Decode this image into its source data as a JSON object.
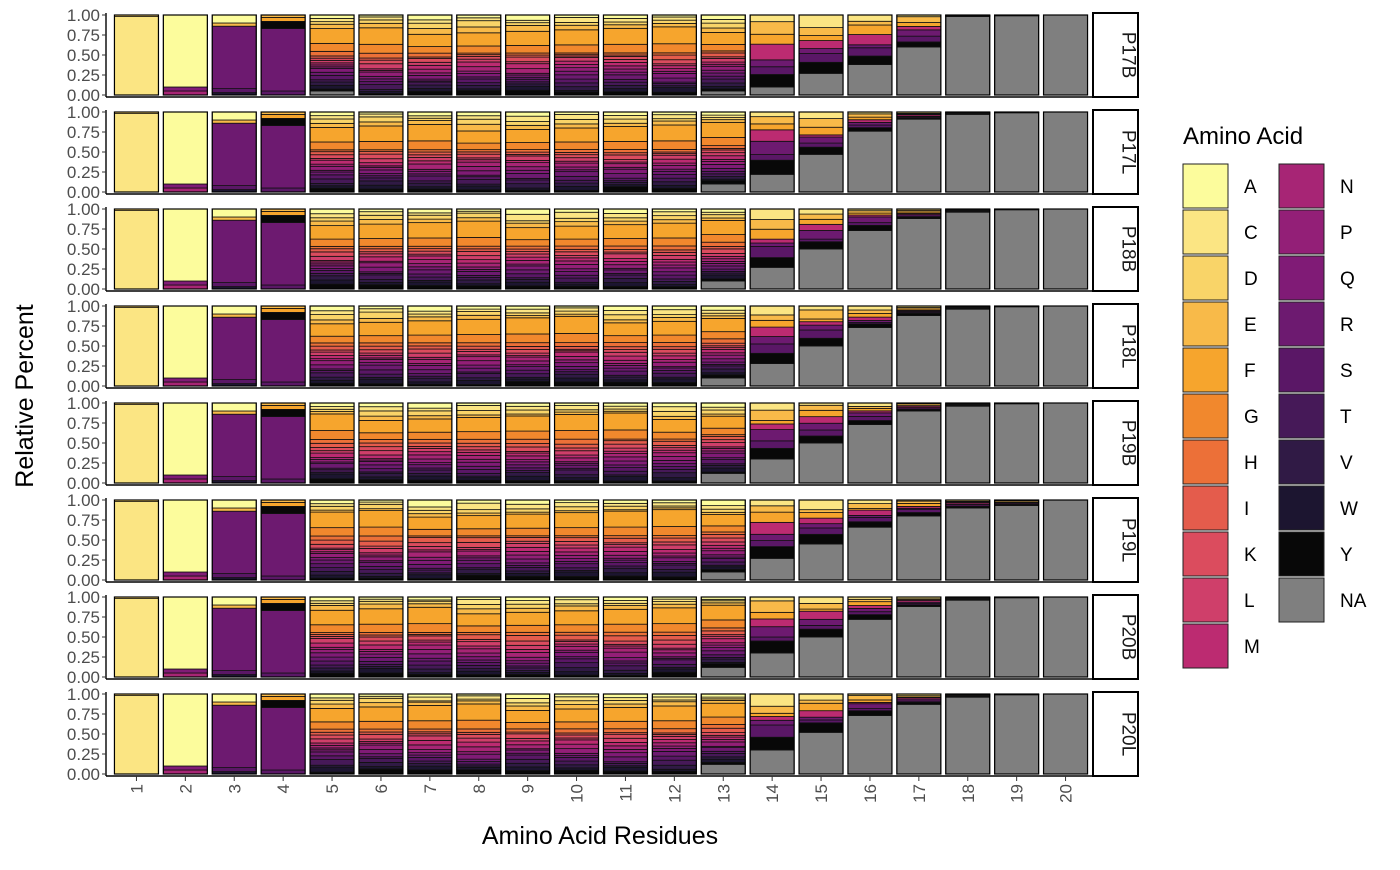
{
  "chart_data": {
    "type": "bar",
    "stacked": true,
    "xlabel": "Amino Acid Residues",
    "ylabel": "Relative Percent",
    "ylim": [
      0,
      1
    ],
    "y_ticks": [
      "0.00",
      "0.25",
      "0.50",
      "0.75",
      "1.00"
    ],
    "categories": [
      "1",
      "2",
      "3",
      "4",
      "5",
      "6",
      "7",
      "8",
      "9",
      "10",
      "11",
      "12",
      "13",
      "14",
      "15",
      "16",
      "17",
      "18",
      "19",
      "20"
    ],
    "panels": [
      "P17B",
      "P17L",
      "P18B",
      "P18L",
      "P19B",
      "P19L",
      "P20B",
      "P20L"
    ],
    "legend": {
      "title": "Amino Acid",
      "position": "right",
      "entries": [
        "A",
        "C",
        "D",
        "E",
        "F",
        "G",
        "H",
        "I",
        "K",
        "L",
        "M",
        "N",
        "P",
        "Q",
        "R",
        "S",
        "T",
        "V",
        "W",
        "Y",
        "NA"
      ]
    },
    "fill_colors": {
      "A": "#fcfc9c",
      "C": "#fbe583",
      "D": "#f9d468",
      "E": "#f8ba49",
      "F": "#f6a52d",
      "G": "#f1882d",
      "H": "#ec7038",
      "I": "#e45c4c",
      "K": "#db4c5e",
      "L": "#cf3f6a",
      "M": "#bc2b71",
      "N": "#a72575",
      "P": "#931f77",
      "Q": "#801b76",
      "R": "#6d1a70",
      "S": "#5a1766",
      "T": "#461958",
      "V": "#301a45",
      "W": "#1c1530",
      "Y": "#080808",
      "NA": "#7f7f7f"
    },
    "series_note": "Stacked composition per panel; each bar sums to 1. Gray = NA, summed by panel.",
    "na_fraction_by_panel": {
      "P17B": [
        0,
        0,
        0,
        0,
        0.05,
        0,
        0,
        0,
        0,
        0,
        0,
        0,
        0.05,
        0.1,
        0.27,
        0.38,
        0.6,
        0.98,
        0.99,
        1.0
      ],
      "P17L": [
        0,
        0,
        0,
        0,
        0,
        0,
        0,
        0,
        0,
        0,
        0,
        0,
        0.1,
        0.22,
        0.47,
        0.76,
        0.91,
        0.97,
        0.99,
        1.0
      ],
      "P18B": [
        0,
        0,
        0,
        0,
        0,
        0,
        0,
        0,
        0,
        0,
        0,
        0,
        0.1,
        0.27,
        0.5,
        0.73,
        0.88,
        0.96,
        0.99,
        1.0
      ],
      "P18L": [
        0,
        0,
        0,
        0,
        0,
        0,
        0,
        0,
        0,
        0,
        0,
        0,
        0.1,
        0.28,
        0.5,
        0.73,
        0.88,
        0.96,
        0.99,
        1.0
      ],
      "P19B": [
        0,
        0,
        0,
        0,
        0,
        0,
        0,
        0,
        0,
        0,
        0,
        0,
        0.12,
        0.3,
        0.5,
        0.73,
        0.9,
        0.96,
        0.99,
        1.0
      ],
      "P19L": [
        0,
        0,
        0,
        0,
        0,
        0,
        0,
        0,
        0,
        0,
        0,
        0,
        0.1,
        0.27,
        0.45,
        0.66,
        0.8,
        0.9,
        0.93,
        1.0
      ],
      "P20B": [
        0,
        0,
        0,
        0,
        0,
        0,
        0,
        0,
        0,
        0,
        0,
        0,
        0.12,
        0.3,
        0.5,
        0.72,
        0.88,
        0.96,
        0.99,
        1.0
      ],
      "P20L": [
        0,
        0,
        0,
        0,
        0,
        0,
        0,
        0,
        0,
        0,
        0,
        0,
        0.12,
        0.3,
        0.52,
        0.73,
        0.87,
        0.96,
        0.99,
        1.0
      ]
    },
    "composition_by_residue": {
      "1": {
        "C": 0.99,
        "D": 0.01
      },
      "2": {
        "A": 0.92,
        "N": 0.04,
        "Q": 0.04
      },
      "3": {
        "A": 0.06,
        "E": 0.04,
        "R": 0.8,
        "S": 0.06,
        "W": 0.04
      },
      "4": {
        "F": 0.05,
        "Y": 0.1,
        "R": 0.75,
        "S": 0.1
      },
      "5": {
        "D": 0.1,
        "F": 0.15,
        "K": 0.2,
        "R": 0.35,
        "T": 0.2
      },
      "6": {
        "C": 0.1,
        "F": 0.35,
        "R": 0.55
      },
      "7": {
        "C": 0.1,
        "F": 0.35,
        "R": 0.55
      },
      "8": {
        "C": 0.1,
        "F": 0.38,
        "R": 0.52
      },
      "9": {
        "C": 0.1,
        "F": 0.32,
        "R": 0.58
      },
      "10": {
        "C": 0.12,
        "F": 0.3,
        "R": 0.58
      },
      "11": {
        "C": 0.12,
        "F": 0.3,
        "R": 0.58
      },
      "12": {
        "C": 0.12,
        "F": 0.3,
        "R": 0.58
      }
    }
  }
}
